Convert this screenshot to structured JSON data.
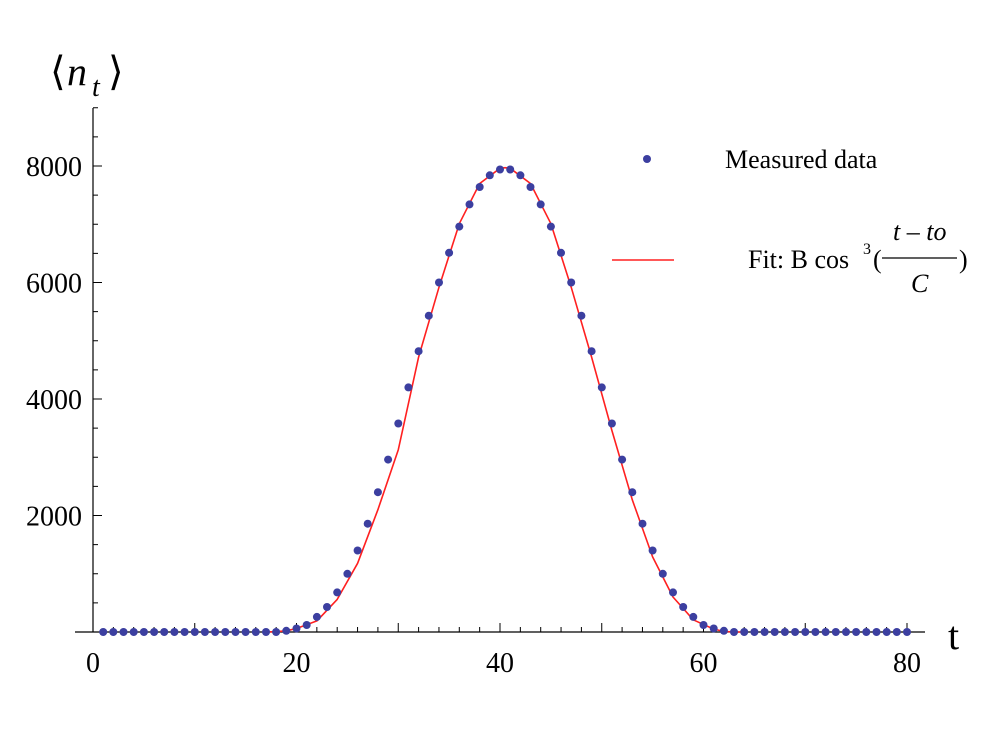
{
  "chart_data": {
    "type": "scatter",
    "title": "",
    "xlabel": "t",
    "ylabel_main": "n",
    "ylabel_sub": "t",
    "xlim": [
      0,
      80
    ],
    "ylim": [
      0,
      9000
    ],
    "x_ticks": [
      0,
      20,
      40,
      60,
      80
    ],
    "y_ticks": [
      2000,
      4000,
      6000,
      8000
    ],
    "x_tick_labels": [
      "0",
      "20",
      "40",
      "60",
      "80"
    ],
    "y_tick_labels": [
      "2000",
      "4000",
      "6000",
      "8000"
    ],
    "legend": {
      "placement": "top-right",
      "measured_label": "Measured data",
      "fit_prefix": "Fit: B cos",
      "fit_exponent": "3",
      "fit_open_paren": "(",
      "fit_numerator": "t – to",
      "fit_denominator": "C",
      "fit_close_paren": ")"
    },
    "colors": {
      "measured": "#3c3fa0",
      "fit": "#ff2020"
    },
    "series": [
      {
        "name": "Measured data",
        "kind": "points",
        "x": [
          1,
          2,
          3,
          4,
          5,
          6,
          7,
          8,
          9,
          10,
          11,
          12,
          13,
          14,
          15,
          16,
          17,
          18,
          19,
          20,
          21,
          22,
          23,
          24,
          25,
          26,
          27,
          28,
          29,
          30,
          31,
          32,
          33,
          34,
          35,
          36,
          37,
          38,
          39,
          40,
          41,
          42,
          43,
          44,
          45,
          46,
          47,
          48,
          49,
          50,
          51,
          52,
          53,
          54,
          55,
          56,
          57,
          58,
          59,
          60,
          61,
          62,
          63,
          64,
          65,
          66,
          67,
          68,
          69,
          70,
          71,
          72,
          73,
          74,
          75,
          76,
          77,
          78,
          79,
          80
        ],
        "y": [
          0,
          0,
          0,
          0,
          0,
          0,
          0,
          0,
          0,
          0,
          0,
          0,
          0,
          0,
          0,
          0,
          0,
          0,
          20,
          60,
          120,
          260,
          430,
          680,
          1000,
          1400,
          1860,
          2400,
          2960,
          3580,
          4200,
          4820,
          5430,
          6000,
          6510,
          6960,
          7340,
          7640,
          7840,
          7940,
          7940,
          7840,
          7640,
          7340,
          6960,
          6510,
          6000,
          5430,
          4820,
          4200,
          3580,
          2960,
          2400,
          1860,
          1400,
          1000,
          680,
          430,
          260,
          120,
          60,
          20,
          0,
          0,
          0,
          0,
          0,
          0,
          0,
          0,
          0,
          0,
          0,
          0,
          0,
          0,
          0,
          0,
          0,
          0
        ]
      },
      {
        "name": "Fit: B cos³((t – to)/C)",
        "kind": "line",
        "model": "B cos^3((t - to)/C)",
        "B": 7970,
        "to": 40.5,
        "C": 14.0,
        "x": [
          17,
          18,
          19,
          20,
          22,
          24,
          26,
          28,
          30,
          32,
          34,
          36,
          38,
          40,
          40.5,
          41,
          43,
          45,
          47,
          49,
          51,
          53,
          55,
          57,
          59,
          61,
          62,
          63,
          64
        ],
        "y": [
          0,
          5,
          20,
          60,
          190,
          560,
          1180,
          2100,
          3130,
          4720,
          5920,
          7010,
          7700,
          7960,
          7970,
          7960,
          7700,
          7010,
          5920,
          4720,
          3460,
          2270,
          1290,
          600,
          210,
          50,
          10,
          0,
          0
        ]
      }
    ]
  }
}
